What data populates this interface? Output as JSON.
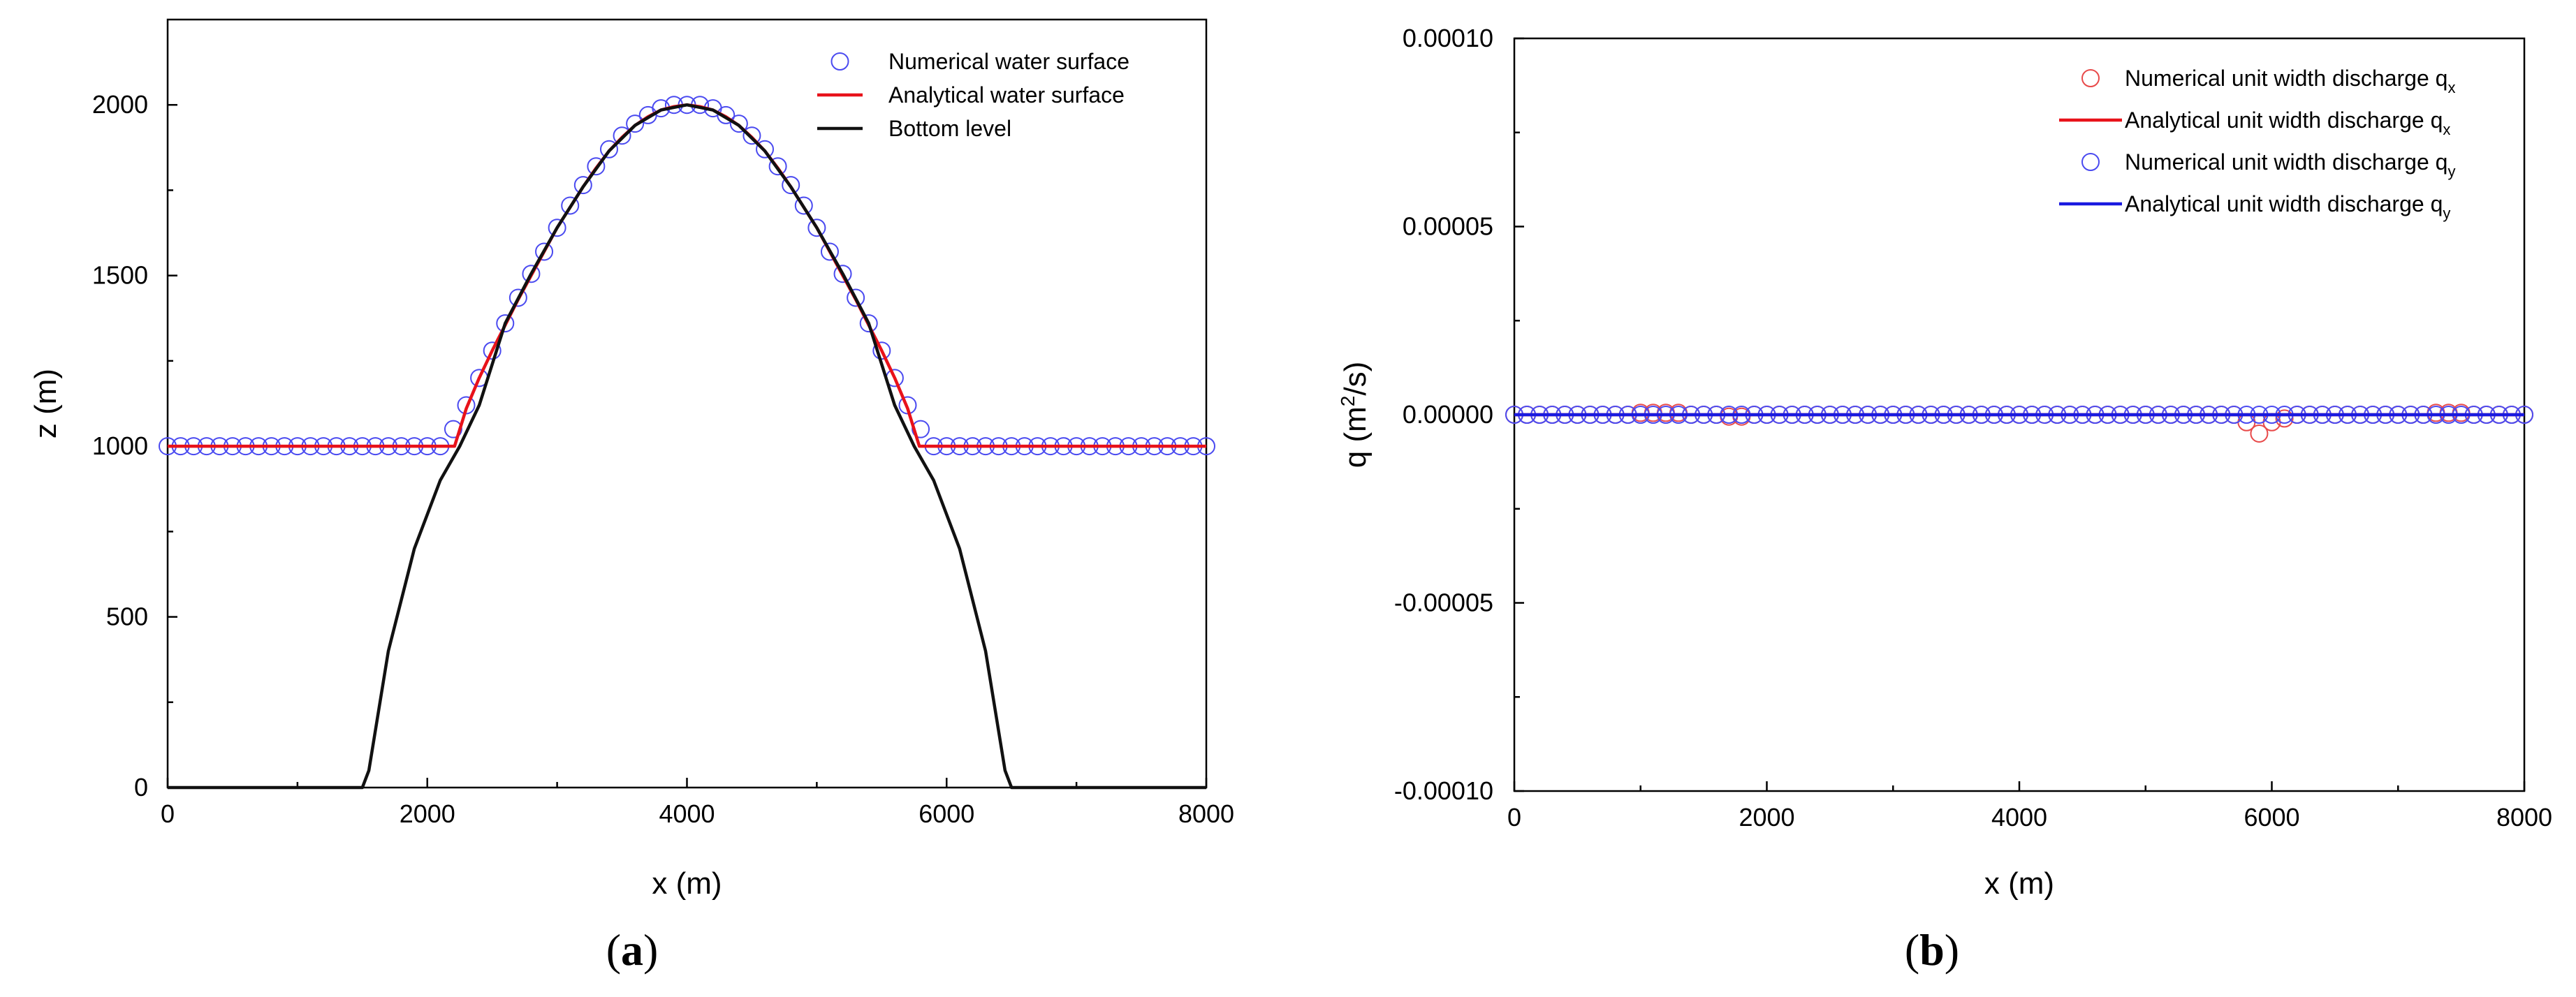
{
  "chart_data": [
    {
      "panel": "(a)",
      "panel_letter": "a",
      "type": "line",
      "xlabel": "x (m)",
      "ylabel": "z (m)",
      "xlim": [
        0,
        8000
      ],
      "ylim": [
        0,
        2250
      ],
      "xticks": [
        0,
        2000,
        4000,
        6000,
        8000
      ],
      "xtick_labels": [
        "0",
        "2000",
        "4000",
        "6000",
        "8000"
      ],
      "yticks": [
        0,
        500,
        1000,
        1500,
        2000
      ],
      "ytick_labels": [
        "0",
        "500",
        "1000",
        "1500",
        "2000"
      ],
      "grid": false,
      "legend_position": "top-right",
      "series": [
        {
          "name": "Numerical water surface",
          "style": "markers",
          "marker": "open-circle",
          "color": "#4a4af0",
          "x": [
            0,
            100,
            200,
            300,
            400,
            500,
            600,
            700,
            800,
            900,
            1000,
            1100,
            1200,
            1300,
            1400,
            1500,
            1600,
            1700,
            1800,
            1900,
            2000,
            2100,
            2200,
            2300,
            2400,
            2500,
            2600,
            2700,
            2800,
            2900,
            3000,
            3100,
            3200,
            3300,
            3400,
            3500,
            3600,
            3700,
            3800,
            3900,
            4000,
            4100,
            4200,
            4300,
            4400,
            4500,
            4600,
            4700,
            4800,
            4900,
            5000,
            5100,
            5200,
            5300,
            5400,
            5500,
            5600,
            5700,
            5800,
            5900,
            6000,
            6100,
            6200,
            6300,
            6400,
            6500,
            6600,
            6700,
            6800,
            6900,
            7000,
            7100,
            7200,
            7300,
            7400,
            7500,
            7600,
            7700,
            7800,
            7900,
            8000
          ],
          "y": [
            1000,
            1000,
            1000,
            1000,
            1000,
            1000,
            1000,
            1000,
            1000,
            1000,
            1000,
            1000,
            1000,
            1000,
            1000,
            1000,
            1000,
            1000,
            1000,
            1000,
            1000,
            1000,
            1050,
            1120,
            1200,
            1280,
            1360,
            1435,
            1505,
            1570,
            1640,
            1705,
            1765,
            1820,
            1870,
            1910,
            1945,
            1970,
            1990,
            2000,
            2000,
            2000,
            1990,
            1970,
            1945,
            1910,
            1870,
            1820,
            1765,
            1705,
            1640,
            1570,
            1505,
            1435,
            1360,
            1280,
            1200,
            1120,
            1050,
            1000,
            1000,
            1000,
            1000,
            1000,
            1000,
            1000,
            1000,
            1000,
            1000,
            1000,
            1000,
            1000,
            1000,
            1000,
            1000,
            1000,
            1000,
            1000,
            1000,
            1000,
            1000
          ]
        },
        {
          "name": "Analytical water surface",
          "style": "line",
          "color": "#e8121a",
          "x": [
            0,
            2210,
            2300,
            2400,
            2500,
            2600,
            2700,
            2800,
            2900,
            3000,
            3100,
            3200,
            3300,
            3400,
            3500,
            3600,
            3700,
            3800,
            3900,
            4000,
            4100,
            4200,
            4300,
            4400,
            4500,
            4600,
            4700,
            4800,
            4900,
            5000,
            5100,
            5200,
            5300,
            5400,
            5500,
            5600,
            5700,
            5790,
            8000
          ],
          "y": [
            1000,
            1000,
            1110,
            1200,
            1280,
            1355,
            1430,
            1500,
            1570,
            1640,
            1700,
            1760,
            1815,
            1865,
            1905,
            1940,
            1965,
            1985,
            1995,
            2000,
            1995,
            1985,
            1965,
            1940,
            1905,
            1865,
            1815,
            1760,
            1700,
            1640,
            1570,
            1500,
            1430,
            1355,
            1280,
            1200,
            1110,
            1000,
            1000
          ]
        },
        {
          "name": "Bottom level",
          "style": "line",
          "color": "#111111",
          "x": [
            0,
            1500,
            1550,
            1700,
            1900,
            2100,
            2250,
            2400,
            2600,
            2800,
            3000,
            3200,
            3400,
            3600,
            3800,
            4000,
            4200,
            4400,
            4600,
            4800,
            5000,
            5200,
            5400,
            5600,
            5750,
            5900,
            6100,
            6300,
            6450,
            6500,
            8000
          ],
          "y": [
            0,
            0,
            50,
            400,
            700,
            900,
            1000,
            1120,
            1360,
            1505,
            1640,
            1760,
            1865,
            1940,
            1985,
            2000,
            1985,
            1940,
            1865,
            1760,
            1640,
            1505,
            1360,
            1120,
            1000,
            900,
            700,
            400,
            50,
            0,
            0
          ]
        }
      ]
    },
    {
      "panel": "(b)",
      "panel_letter": "b",
      "type": "line",
      "xlabel": "x (m)",
      "ylabel_parts": [
        "q (m",
        "2",
        "/s)"
      ],
      "xlim": [
        0,
        8000
      ],
      "ylim": [
        -0.0001,
        0.0001
      ],
      "xticks": [
        0,
        2000,
        4000,
        6000,
        8000
      ],
      "xtick_labels": [
        "0",
        "2000",
        "4000",
        "6000",
        "8000"
      ],
      "yticks": [
        -0.0001,
        -5e-05,
        0,
        5e-05,
        0.0001
      ],
      "ytick_labels": [
        "-0.00010",
        "-0.00005",
        "0.00000",
        "0.00005",
        "0.00010"
      ],
      "grid": false,
      "legend_position": "top-right",
      "series": [
        {
          "name_parts": [
            "Numerical unit width discharge q",
            "x"
          ],
          "style": "markers",
          "marker": "open-circle",
          "color": "#e84a4a",
          "x": [
            0,
            100,
            200,
            300,
            400,
            500,
            600,
            700,
            800,
            900,
            1000,
            1100,
            1200,
            1300,
            1400,
            1500,
            1600,
            1700,
            1800,
            1900,
            2000,
            2100,
            2200,
            2300,
            2400,
            2500,
            2600,
            2700,
            2800,
            2900,
            3000,
            3100,
            3200,
            3300,
            3400,
            3500,
            3600,
            3700,
            3800,
            3900,
            4000,
            4100,
            4200,
            4300,
            4400,
            4500,
            4600,
            4700,
            4800,
            4900,
            5000,
            5100,
            5200,
            5300,
            5400,
            5500,
            5600,
            5700,
            5800,
            5900,
            6000,
            6100,
            6200,
            6300,
            6400,
            6500,
            6600,
            6700,
            6800,
            6900,
            7000,
            7100,
            7200,
            7300,
            7400,
            7500,
            7600,
            7700,
            7800,
            7900,
            8000
          ],
          "y": [
            0,
            0,
            0,
            0,
            0,
            0,
            0,
            0,
            0,
            0,
            5e-07,
            5e-07,
            5e-07,
            5e-07,
            0,
            0,
            0,
            -5e-07,
            -5e-07,
            0,
            0,
            0,
            0,
            0,
            0,
            0,
            0,
            0,
            0,
            0,
            0,
            0,
            0,
            0,
            0,
            0,
            0,
            0,
            0,
            0,
            0,
            0,
            0,
            0,
            0,
            0,
            0,
            0,
            0,
            0,
            0,
            0,
            0,
            0,
            0,
            0,
            0,
            0,
            -2e-06,
            -5e-06,
            -2e-06,
            -1e-06,
            0,
            0,
            0,
            0,
            0,
            0,
            0,
            0,
            0,
            0,
            0,
            5e-07,
            5e-07,
            5e-07,
            0,
            0,
            0,
            0,
            0
          ]
        },
        {
          "name_parts": [
            "Analytical  unit width discharge q",
            "x"
          ],
          "style": "line",
          "color": "#e8121a",
          "x": [
            0,
            8000
          ],
          "y": [
            0,
            0
          ]
        },
        {
          "name_parts": [
            "Numerical unit width discharge q",
            "y"
          ],
          "style": "markers",
          "marker": "open-circle",
          "color": "#4a4af0",
          "x": [
            0,
            100,
            200,
            300,
            400,
            500,
            600,
            700,
            800,
            900,
            1000,
            1100,
            1200,
            1300,
            1400,
            1500,
            1600,
            1700,
            1800,
            1900,
            2000,
            2100,
            2200,
            2300,
            2400,
            2500,
            2600,
            2700,
            2800,
            2900,
            3000,
            3100,
            3200,
            3300,
            3400,
            3500,
            3600,
            3700,
            3800,
            3900,
            4000,
            4100,
            4200,
            4300,
            4400,
            4500,
            4600,
            4700,
            4800,
            4900,
            5000,
            5100,
            5200,
            5300,
            5400,
            5500,
            5600,
            5700,
            5800,
            5900,
            6000,
            6100,
            6200,
            6300,
            6400,
            6500,
            6600,
            6700,
            6800,
            6900,
            7000,
            7100,
            7200,
            7300,
            7400,
            7500,
            7600,
            7700,
            7800,
            7900,
            8000
          ],
          "y": [
            0,
            0,
            0,
            0,
            0,
            0,
            0,
            0,
            0,
            0,
            0,
            0,
            0,
            0,
            0,
            0,
            0,
            0,
            0,
            0,
            0,
            0,
            0,
            0,
            0,
            0,
            0,
            0,
            0,
            0,
            0,
            0,
            0,
            0,
            0,
            0,
            0,
            0,
            0,
            0,
            0,
            0,
            0,
            0,
            0,
            0,
            0,
            0,
            0,
            0,
            0,
            0,
            0,
            0,
            0,
            0,
            0,
            0,
            0,
            0,
            0,
            0,
            0,
            0,
            0,
            0,
            0,
            0,
            0,
            0,
            0,
            0,
            0,
            0,
            0,
            0,
            0,
            0,
            0,
            0,
            0
          ]
        },
        {
          "name_parts": [
            "Analytical  unit width discharge q",
            "y"
          ],
          "style": "line",
          "color": "#1a1ae0",
          "x": [
            0,
            8000
          ],
          "y": [
            0,
            0
          ]
        }
      ]
    }
  ]
}
